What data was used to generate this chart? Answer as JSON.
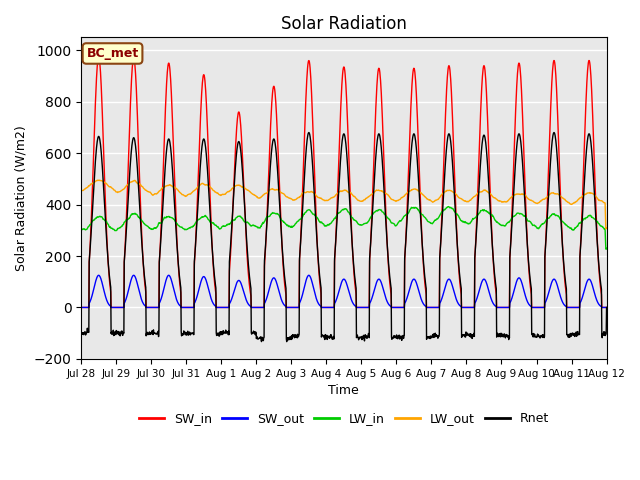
{
  "title": "Solar Radiation",
  "ylabel": "Solar Radiation (W/m2)",
  "xlabel": "Time",
  "ylim": [
    -200,
    1050
  ],
  "xlim": [
    0,
    360
  ],
  "background_color": "#e8e8e8",
  "tick_labels": [
    "Jul 28",
    "Jul 29",
    "Jul 30",
    "Jul 31",
    "Aug 1",
    "Aug 2",
    "Aug 3",
    "Aug 4",
    "Aug 5",
    "Aug 6",
    "Aug 7",
    "Aug 8",
    "Aug 9",
    "Aug 10",
    "Aug 11",
    "Aug 12"
  ],
  "tick_positions": [
    0,
    24,
    48,
    72,
    96,
    120,
    144,
    168,
    192,
    216,
    240,
    264,
    288,
    312,
    336,
    360
  ],
  "annotation_text": "BC_met",
  "colors": {
    "SW_in": "#ff0000",
    "SW_out": "#0000ff",
    "LW_in": "#00cc00",
    "LW_out": "#ffa500",
    "Rnet": "#000000"
  },
  "n_days": 15,
  "sw_in_peaks": [
    975,
    970,
    950,
    905,
    760,
    860,
    960,
    935,
    930,
    930,
    940,
    940,
    950,
    960,
    960
  ],
  "sw_out_peaks": [
    125,
    125,
    125,
    120,
    105,
    115,
    125,
    110,
    110,
    110,
    110,
    110,
    115,
    110,
    110
  ],
  "lw_in_base": [
    295,
    300,
    300,
    300,
    310,
    305,
    310,
    315,
    315,
    325,
    325,
    320,
    310,
    305,
    300
  ],
  "lw_in_bump": [
    60,
    65,
    55,
    55,
    40,
    65,
    65,
    65,
    65,
    65,
    65,
    60,
    60,
    60,
    55
  ],
  "lw_out_base": [
    450,
    440,
    430,
    430,
    430,
    420,
    410,
    410,
    410,
    410,
    405,
    405,
    400,
    400,
    400
  ],
  "lw_out_bump": [
    45,
    50,
    45,
    50,
    45,
    40,
    40,
    45,
    45,
    50,
    50,
    50,
    45,
    45,
    45
  ],
  "rnet_peaks": [
    665,
    660,
    655,
    655,
    645,
    655,
    680,
    675,
    675,
    675,
    675,
    670,
    675,
    680,
    675
  ],
  "rnet_night": [
    -100,
    -100,
    -100,
    -105,
    -100,
    -120,
    -110,
    -115,
    -115,
    -115,
    -110,
    -110,
    -110,
    -110,
    -105
  ]
}
